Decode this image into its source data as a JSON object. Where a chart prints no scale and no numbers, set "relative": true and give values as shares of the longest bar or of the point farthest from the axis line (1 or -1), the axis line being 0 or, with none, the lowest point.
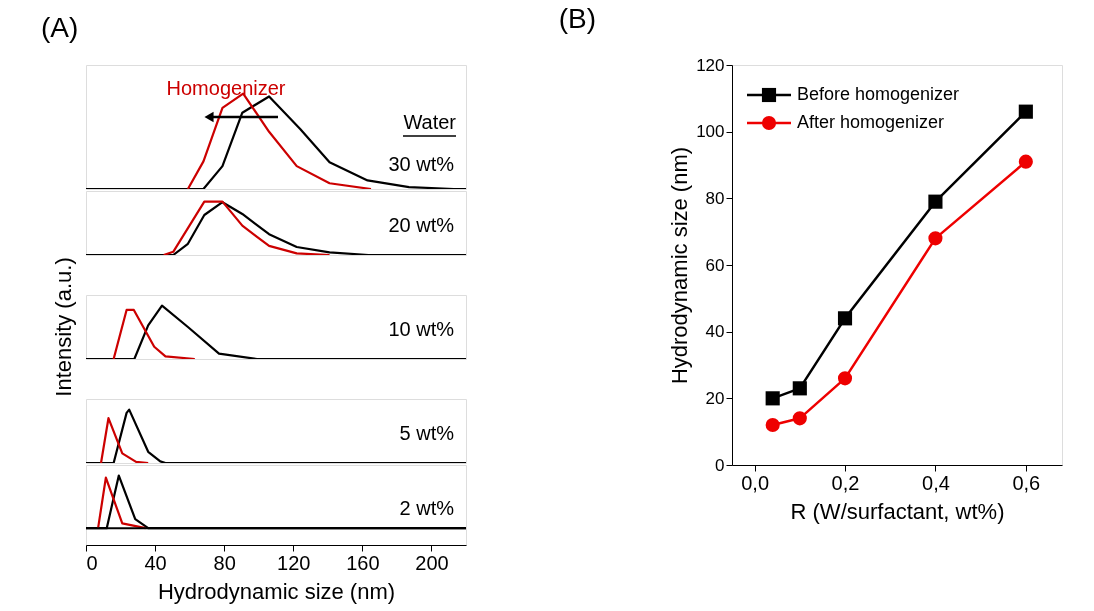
{
  "chart_data": [
    {
      "type": "line",
      "title": "(A)",
      "relative": true,
      "xlim": [
        0,
        220
      ],
      "tick_labels": false,
      "annotations": [
        "Homogenizer",
        "Water",
        "30 wt%"
      ],
      "series": [
        {
          "color": "#000000",
          "x": [
            0,
            68,
            79,
            90.5,
            106,
            124,
            141,
            163,
            187,
            213,
            220
          ],
          "values": [
            0,
            0,
            0.24,
            0.8,
            0.97,
            0.63,
            0.28,
            0.09,
            0.02,
            0,
            0
          ]
        },
        {
          "color": "#cc0000",
          "x": [
            59,
            68,
            79,
            91,
            106,
            122,
            141,
            165
          ],
          "values": [
            0,
            0.29,
            0.85,
            1,
            0.6,
            0.24,
            0.06,
            0
          ]
        }
      ]
    },
    {
      "type": "line",
      "relative": true,
      "xlim": [
        0,
        220
      ],
      "tick_labels": false,
      "annotations": [
        "20 wt%"
      ],
      "series": [
        {
          "color": "#000000",
          "x": [
            0,
            50.5,
            59,
            68.5,
            79,
            90.5,
            106,
            122,
            141,
            163.5,
            220
          ],
          "values": [
            0,
            0,
            0.21,
            0.75,
            0.99,
            0.77,
            0.39,
            0.15,
            0.05,
            0,
            0
          ]
        },
        {
          "color": "#cc0000",
          "x": [
            45,
            50.5,
            68.5,
            79,
            90.5,
            106,
            122,
            141
          ],
          "values": [
            0,
            0.06,
            1,
            1,
            0.55,
            0.17,
            0.03,
            0
          ]
        }
      ]
    },
    {
      "type": "line",
      "relative": true,
      "xlim": [
        0,
        220
      ],
      "tick_labels": false,
      "ylabel": "Intensity (a.u.)",
      "annotations": [
        "10 wt%"
      ],
      "series": [
        {
          "color": "#000000",
          "x": [
            0,
            28,
            36,
            44,
            59,
            77,
            99,
            220
          ],
          "values": [
            0,
            0,
            0.63,
            1,
            0.6,
            0.1,
            0,
            0
          ]
        },
        {
          "color": "#cc0000",
          "x": [
            16,
            23.5,
            27.7,
            39.5,
            46,
            63
          ],
          "values": [
            0,
            0.92,
            0.92,
            0.23,
            0.05,
            0
          ]
        }
      ]
    },
    {
      "type": "line",
      "relative": true,
      "xlim": [
        0,
        220
      ],
      "tick_labels": false,
      "annotations": [
        "5 wt%"
      ],
      "series": [
        {
          "color": "#000000",
          "x": [
            0,
            16,
            23.5,
            25,
            36,
            43,
            46,
            220
          ],
          "values": [
            0,
            0,
            0.94,
            1,
            0.21,
            0.03,
            0,
            0
          ]
        },
        {
          "color": "#cc0000",
          "x": [
            8.7,
            13,
            21,
            29,
            36
          ],
          "values": [
            0,
            0.84,
            0.18,
            0.02,
            0
          ]
        }
      ]
    },
    {
      "type": "line",
      "relative": true,
      "xlim": [
        0,
        220
      ],
      "tick_labels": "x",
      "xlabel": "Hydrodynamic size (nm)",
      "annotations": [
        "2 wt%"
      ],
      "xticks": [
        0,
        40,
        80,
        120,
        160,
        200
      ],
      "series": [
        {
          "color": "#000000",
          "x": [
            0,
            12,
            19,
            28.5,
            36,
            220
          ],
          "values": [
            0,
            0,
            1,
            0.17,
            0,
            0
          ]
        },
        {
          "color": "#cc0000",
          "x": [
            7,
            11.5,
            21,
            34.5
          ],
          "values": [
            0,
            0.96,
            0.09,
            0
          ]
        }
      ]
    },
    {
      "type": "line",
      "title": "(B)",
      "xlabel": "R (W/surfactant, wt%)",
      "ylabel": "Hydrodynamic size (nm)",
      "xlim": [
        -0.05,
        0.68
      ],
      "ylim": [
        0,
        120
      ],
      "xticks": [
        {
          "value": 0,
          "label": "0,0"
        },
        {
          "value": 0.2,
          "label": "0,2"
        },
        {
          "value": 0.4,
          "label": "0,4"
        },
        {
          "value": 0.6,
          "label": "0,6"
        }
      ],
      "yticks": [
        0,
        20,
        40,
        60,
        80,
        100,
        120
      ],
      "grid": false,
      "legend": "top left",
      "x": [
        0.04,
        0.1,
        0.2,
        0.4,
        0.6
      ],
      "series": [
        {
          "name": "Before homogenizer",
          "color": "#000000",
          "marker": "square",
          "values": [
            20,
            23,
            44,
            79,
            106
          ]
        },
        {
          "name": "After homogenizer",
          "color": "#ee0000",
          "marker": "circle",
          "values": [
            12,
            14,
            26,
            68,
            91
          ]
        }
      ]
    }
  ]
}
